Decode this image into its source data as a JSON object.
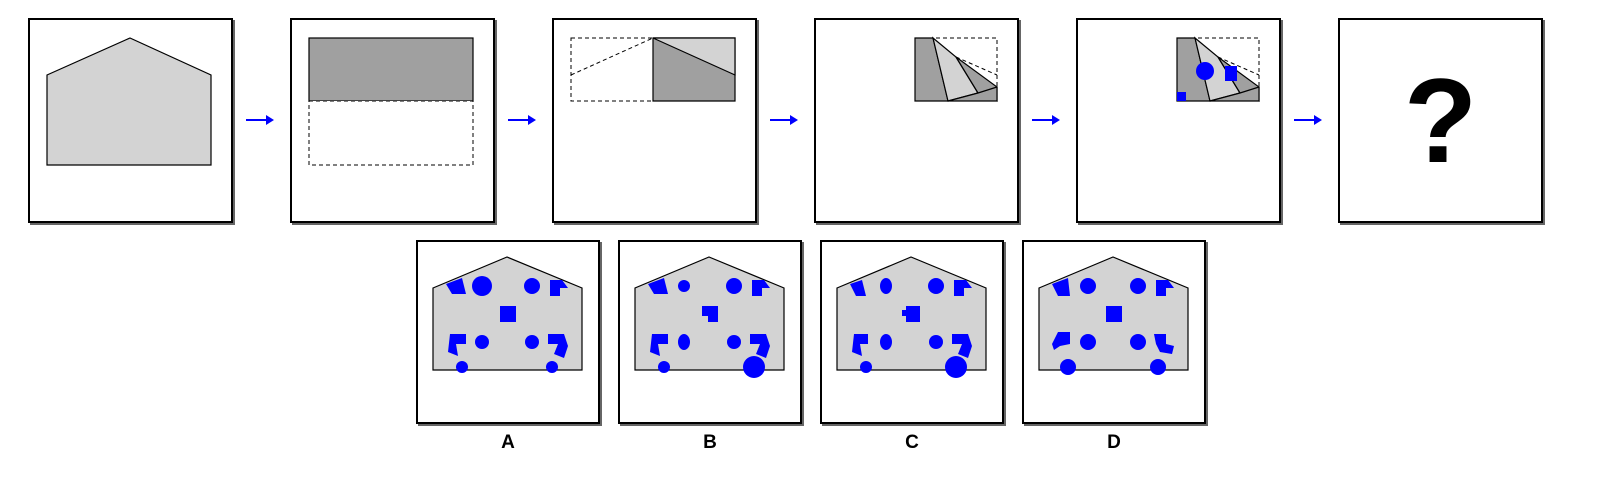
{
  "sequence": {
    "unknown_symbol": "?"
  },
  "options": [
    {
      "label": "A"
    },
    {
      "label": "B"
    },
    {
      "label": "C"
    },
    {
      "label": "D"
    }
  ],
  "colors": {
    "paper": "#d3d3d3",
    "paper_dark": "#a0a0a0",
    "hole": "#0000ff",
    "arrow": "#0000ff",
    "border": "#000000"
  }
}
